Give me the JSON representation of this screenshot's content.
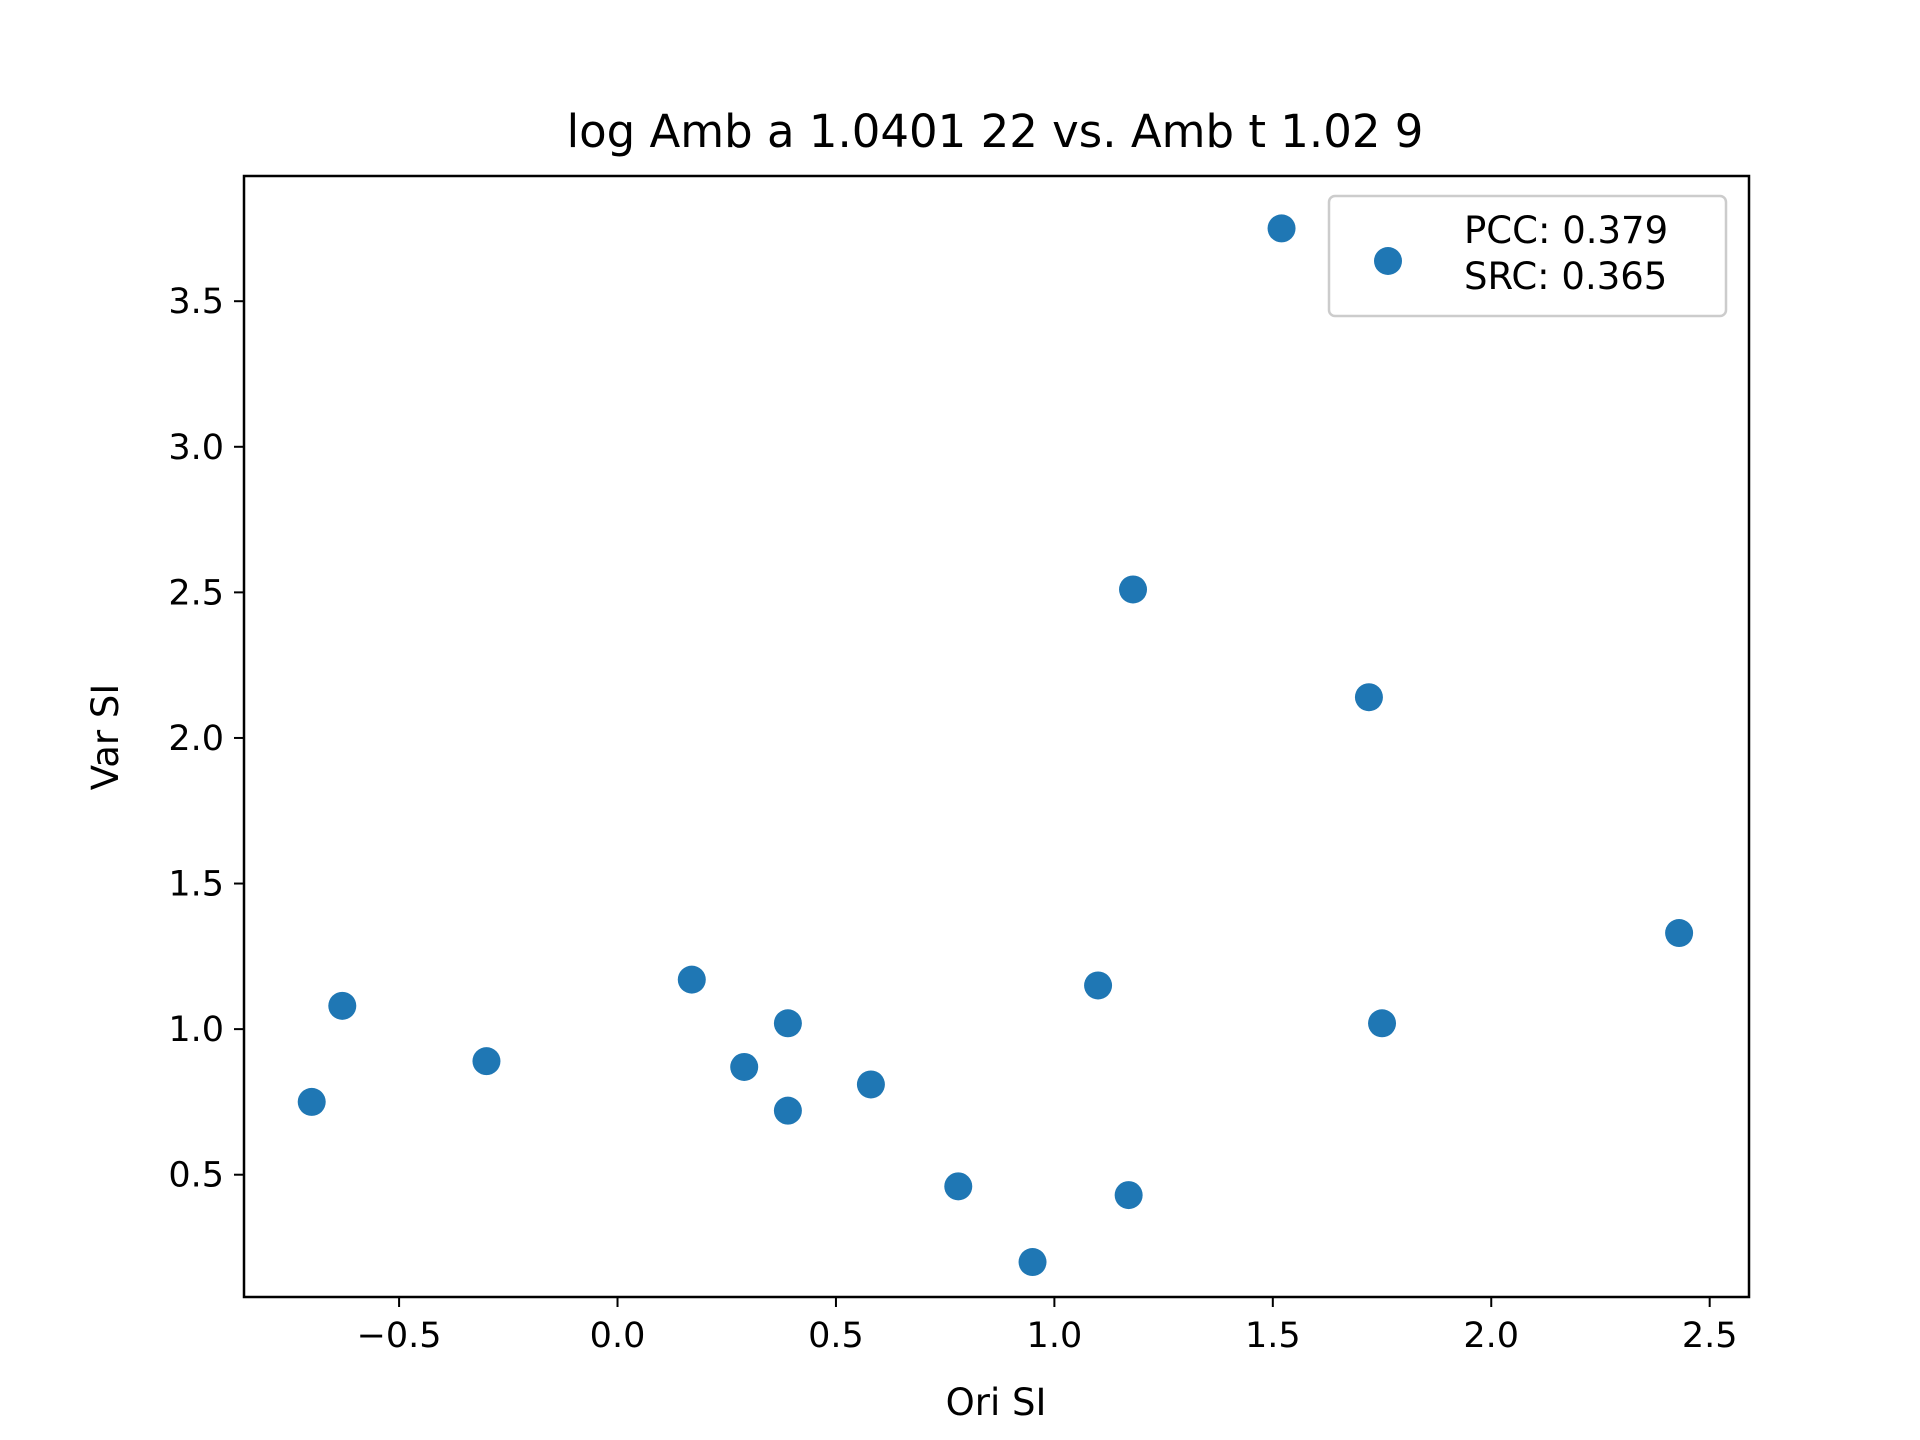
{
  "chart_data": {
    "type": "scatter",
    "title": "log Amb a 1.0401 22 vs. Amb t 1.02 9",
    "xlabel": "Ori SI",
    "ylabel": "Var SI",
    "xlim": [
      -0.855,
      2.59
    ],
    "ylim": [
      0.08,
      3.93
    ],
    "xticks": [
      -0.5,
      0.0,
      0.5,
      1.0,
      1.5,
      2.0,
      2.5
    ],
    "xtick_labels": [
      "−0.5",
      "0.0",
      "0.5",
      "1.0",
      "1.5",
      "2.0",
      "2.5"
    ],
    "yticks": [
      0.5,
      1.0,
      1.5,
      2.0,
      2.5,
      3.0,
      3.5
    ],
    "ytick_labels": [
      "0.5",
      "1.0",
      "1.5",
      "2.0",
      "2.5",
      "3.0",
      "3.5"
    ],
    "grid": false,
    "legend": {
      "placement": "top-right",
      "lines": [
        "PCC: 0.379",
        "SRC: 0.365"
      ]
    },
    "series": [
      {
        "color": "#1f77b4",
        "points": [
          {
            "x": -0.7,
            "y": 0.75
          },
          {
            "x": -0.63,
            "y": 1.08
          },
          {
            "x": -0.3,
            "y": 0.89
          },
          {
            "x": 0.17,
            "y": 1.17
          },
          {
            "x": 0.29,
            "y": 0.87
          },
          {
            "x": 0.39,
            "y": 1.02
          },
          {
            "x": 0.39,
            "y": 0.72
          },
          {
            "x": 0.58,
            "y": 0.81
          },
          {
            "x": 0.78,
            "y": 0.46
          },
          {
            "x": 0.95,
            "y": 0.2
          },
          {
            "x": 1.1,
            "y": 1.15
          },
          {
            "x": 1.17,
            "y": 0.43
          },
          {
            "x": 1.18,
            "y": 2.51
          },
          {
            "x": 1.52,
            "y": 3.75
          },
          {
            "x": 1.72,
            "y": 2.14
          },
          {
            "x": 1.75,
            "y": 1.02
          },
          {
            "x": 2.43,
            "y": 1.33
          }
        ]
      }
    ]
  }
}
